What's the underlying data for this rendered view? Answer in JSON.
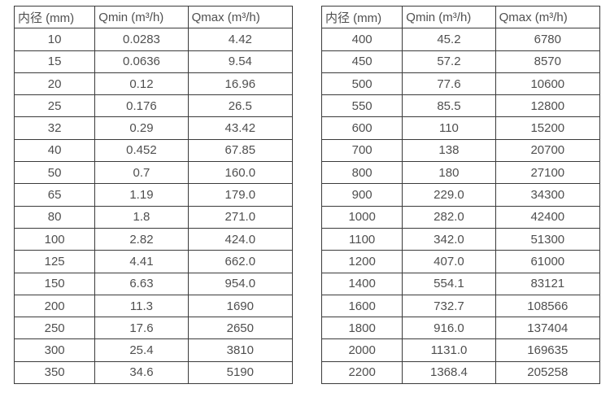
{
  "columns": [
    "内径 (mm)",
    "Qmin (m³/h)",
    "Qmax (m³/h)"
  ],
  "colors": {
    "border": "#3b3b3b",
    "text": "#4f4f4f",
    "background": "#ffffff"
  },
  "tables": [
    {
      "name": "small-diameters",
      "rows": [
        [
          "10",
          "0.0283",
          "4.42"
        ],
        [
          "15",
          "0.0636",
          "9.54"
        ],
        [
          "20",
          "0.12",
          "16.96"
        ],
        [
          "25",
          "0.176",
          "26.5"
        ],
        [
          "32",
          "0.29",
          "43.42"
        ],
        [
          "40",
          "0.452",
          "67.85"
        ],
        [
          "50",
          "0.7",
          "160.0"
        ],
        [
          "65",
          "1.19",
          "179.0"
        ],
        [
          "80",
          "1.8",
          "271.0"
        ],
        [
          "100",
          "2.82",
          "424.0"
        ],
        [
          "125",
          "4.41",
          "662.0"
        ],
        [
          "150",
          "6.63",
          "954.0"
        ],
        [
          "200",
          "11.3",
          "1690"
        ],
        [
          "250",
          "17.6",
          "2650"
        ],
        [
          "300",
          "25.4",
          "3810"
        ],
        [
          "350",
          "34.6",
          "5190"
        ]
      ]
    },
    {
      "name": "large-diameters",
      "rows": [
        [
          "400",
          "45.2",
          "6780"
        ],
        [
          "450",
          "57.2",
          "8570"
        ],
        [
          "500",
          "77.6",
          "10600"
        ],
        [
          "550",
          "85.5",
          "12800"
        ],
        [
          "600",
          "110",
          "15200"
        ],
        [
          "700",
          "138",
          "20700"
        ],
        [
          "800",
          "180",
          "27100"
        ],
        [
          "900",
          "229.0",
          "34300"
        ],
        [
          "1000",
          "282.0",
          "42400"
        ],
        [
          "1100",
          "342.0",
          "51300"
        ],
        [
          "1200",
          "407.0",
          "61000"
        ],
        [
          "1400",
          "554.1",
          "83121"
        ],
        [
          "1600",
          "732.7",
          "108566"
        ],
        [
          "1800",
          "916.0",
          "137404"
        ],
        [
          "2000",
          "1131.0",
          "169635"
        ],
        [
          "2200",
          "1368.4",
          "205258"
        ]
      ]
    }
  ]
}
